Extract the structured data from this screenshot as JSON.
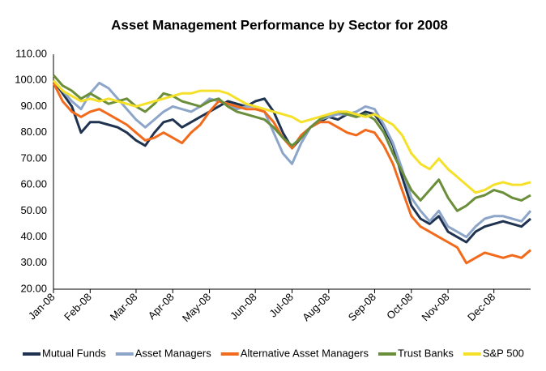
{
  "chart_data": {
    "type": "line",
    "title": "Asset Management Performance by Sector for 2008",
    "categories": [
      "Jan-08",
      null,
      null,
      null,
      "Feb-08",
      null,
      null,
      null,
      null,
      "Mar-08",
      null,
      null,
      null,
      "Apr-08",
      null,
      null,
      null,
      "May-08",
      null,
      null,
      null,
      null,
      "Jun-08",
      null,
      null,
      null,
      "Jul-08",
      null,
      null,
      null,
      "Aug-08",
      null,
      null,
      null,
      null,
      "Sep-08",
      null,
      null,
      null,
      "Oct-08",
      null,
      null,
      null,
      "Nov-08",
      null,
      null,
      null,
      null,
      "Dec-08",
      null,
      null,
      null,
      null
    ],
    "ylim": [
      20,
      110
    ],
    "yticks": [
      {
        "value": 20,
        "label": "20.00"
      },
      {
        "value": 30,
        "label": "30.00"
      },
      {
        "value": 40,
        "label": "40.00"
      },
      {
        "value": 50,
        "label": "50.00"
      },
      {
        "value": 60,
        "label": "60.00"
      },
      {
        "value": 70,
        "label": "70.00"
      },
      {
        "value": 80,
        "label": "80.00"
      },
      {
        "value": 90,
        "label": "90.00"
      },
      {
        "value": 100,
        "label": "100.00"
      },
      {
        "value": 110,
        "label": "110.00"
      }
    ],
    "grid": false,
    "legend": "bottom",
    "series": [
      {
        "name": "Mutual Funds",
        "color": "#1f3350",
        "values": [
          100,
          95,
          90,
          80,
          84,
          84,
          83,
          82,
          80,
          77,
          75,
          80,
          84,
          85,
          82,
          84,
          86,
          88,
          90,
          92,
          91,
          90,
          92,
          93,
          88,
          80,
          74,
          78,
          82,
          84,
          86,
          85,
          87,
          86,
          88,
          87,
          82,
          75,
          63,
          52,
          47,
          45,
          48,
          42,
          40,
          38,
          42,
          44,
          45,
          46,
          45,
          44,
          47
        ]
      },
      {
        "name": "Asset Managers",
        "color": "#8ca5c8",
        "values": [
          100,
          96,
          92,
          89,
          95,
          99,
          97,
          93,
          89,
          85,
          82,
          85,
          88,
          90,
          89,
          88,
          90,
          93,
          92,
          91,
          89,
          90,
          90,
          88,
          80,
          72,
          68,
          76,
          82,
          85,
          86,
          87,
          87,
          88,
          90,
          89,
          83,
          76,
          66,
          55,
          50,
          46,
          50,
          44,
          42,
          40,
          44,
          47,
          48,
          48,
          47,
          46,
          50
        ]
      },
      {
        "name": "Alternative Asset Managers",
        "color": "#f26a1b",
        "values": [
          99,
          92,
          88,
          86,
          88,
          89,
          87,
          85,
          83,
          80,
          77,
          78,
          80,
          78,
          76,
          80,
          83,
          88,
          92,
          91,
          90,
          89,
          89,
          88,
          84,
          78,
          74,
          79,
          82,
          84,
          84,
          82,
          80,
          79,
          81,
          80,
          75,
          68,
          58,
          48,
          44,
          42,
          40,
          38,
          36,
          30,
          32,
          34,
          33,
          32,
          33,
          32,
          35
        ]
      },
      {
        "name": "Trust Banks",
        "color": "#6b8e3a",
        "values": [
          102,
          98,
          96,
          93,
          95,
          93,
          91,
          92,
          93,
          90,
          88,
          91,
          95,
          94,
          92,
          91,
          90,
          92,
          93,
          90,
          88,
          87,
          86,
          85,
          82,
          78,
          75,
          78,
          82,
          85,
          87,
          88,
          87,
          86,
          87,
          85,
          80,
          72,
          65,
          58,
          54,
          58,
          62,
          55,
          50,
          52,
          55,
          56,
          58,
          57,
          55,
          54,
          56
        ]
      },
      {
        "name": "S&P 500",
        "color": "#f5e02a",
        "values": [
          100,
          96,
          94,
          92,
          93,
          92,
          93,
          92,
          91,
          90,
          91,
          92,
          93,
          94,
          95,
          95,
          96,
          96,
          96,
          95,
          93,
          91,
          90,
          89,
          88,
          87,
          86,
          84,
          85,
          86,
          87,
          88,
          88,
          87,
          86,
          87,
          85,
          83,
          79,
          72,
          68,
          66,
          70,
          66,
          63,
          60,
          57,
          58,
          60,
          61,
          60,
          60,
          61
        ]
      }
    ]
  }
}
